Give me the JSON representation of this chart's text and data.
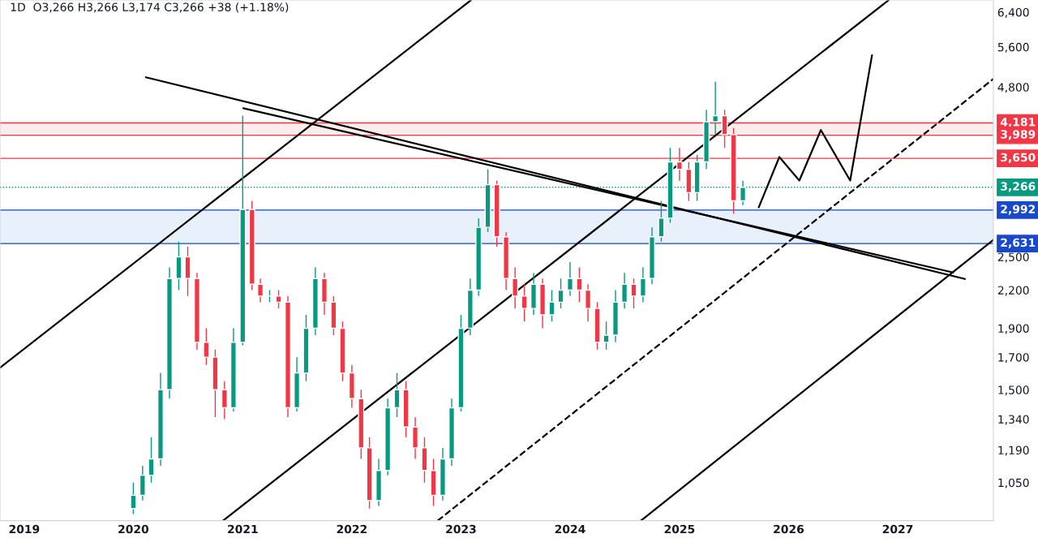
{
  "chart_data": {
    "type": "candlestick",
    "title": "1D  O3,266 H3,266 L3,174 C3,266 +38 (+1.18%)",
    "x": [
      "2020-01",
      "2020-02",
      "2020-03",
      "2020-04",
      "2020-05",
      "2020-06",
      "2020-07",
      "2020-08",
      "2020-09",
      "2020-10",
      "2020-11",
      "2020-12",
      "2021-01",
      "2021-02",
      "2021-03",
      "2021-04",
      "2021-05",
      "2021-06",
      "2021-07",
      "2021-08",
      "2021-09",
      "2021-10",
      "2021-11",
      "2021-12",
      "2022-01",
      "2022-02",
      "2022-03",
      "2022-04",
      "2022-05",
      "2022-06",
      "2022-07",
      "2022-08",
      "2022-09",
      "2022-10",
      "2022-11",
      "2022-12",
      "2023-01",
      "2023-02",
      "2023-03",
      "2023-04",
      "2023-05",
      "2023-06",
      "2023-07",
      "2023-08",
      "2023-09",
      "2023-10",
      "2023-11",
      "2023-12",
      "2024-01",
      "2024-02",
      "2024-03",
      "2024-04",
      "2024-05",
      "2024-06",
      "2024-07",
      "2024-08",
      "2024-09",
      "2024-10",
      "2024-11",
      "2024-12",
      "2025-01",
      "2025-02",
      "2025-03",
      "2025-04",
      "2025-05",
      "2025-06",
      "2025-07",
      "2025-08"
    ],
    "ohlc": [
      [
        950,
        1050,
        930,
        1000
      ],
      [
        1000,
        1120,
        980,
        1080
      ],
      [
        1080,
        1250,
        1050,
        1150
      ],
      [
        1150,
        1600,
        1120,
        1500
      ],
      [
        1500,
        2400,
        1450,
        2300
      ],
      [
        2300,
        2650,
        2200,
        2500
      ],
      [
        2500,
        2600,
        2150,
        2300
      ],
      [
        2300,
        2350,
        1750,
        1800
      ],
      [
        1800,
        1900,
        1650,
        1700
      ],
      [
        1700,
        1750,
        1350,
        1500
      ],
      [
        1500,
        1550,
        1340,
        1400
      ],
      [
        1400,
        1900,
        1380,
        1800
      ],
      [
        1800,
        4300,
        1780,
        3000
      ],
      [
        3000,
        3100,
        2200,
        2250
      ],
      [
        2250,
        2300,
        2100,
        2150
      ],
      [
        2150,
        2200,
        2100,
        2150
      ],
      [
        2150,
        2200,
        2050,
        2100
      ],
      [
        2100,
        2150,
        1350,
        1400
      ],
      [
        1400,
        1700,
        1380,
        1600
      ],
      [
        1600,
        2000,
        1550,
        1900
      ],
      [
        1900,
        2400,
        1850,
        2300
      ],
      [
        2300,
        2350,
        2000,
        2100
      ],
      [
        2100,
        2150,
        1850,
        1900
      ],
      [
        1900,
        1950,
        1550,
        1600
      ],
      [
        1600,
        1650,
        1400,
        1450
      ],
      [
        1450,
        1500,
        1150,
        1200
      ],
      [
        1200,
        1250,
        950,
        980
      ],
      [
        980,
        1150,
        960,
        1100
      ],
      [
        1100,
        1450,
        1080,
        1400
      ],
      [
        1400,
        1600,
        1350,
        1500
      ],
      [
        1500,
        1550,
        1250,
        1300
      ],
      [
        1300,
        1350,
        1150,
        1200
      ],
      [
        1200,
        1250,
        1050,
        1100
      ],
      [
        1100,
        1150,
        960,
        1000
      ],
      [
        1000,
        1200,
        980,
        1150
      ],
      [
        1150,
        1450,
        1120,
        1400
      ],
      [
        1400,
        2000,
        1380,
        1900
      ],
      [
        1900,
        2300,
        1850,
        2200
      ],
      [
        2200,
        2900,
        2150,
        2800
      ],
      [
        2800,
        3500,
        2750,
        3300
      ],
      [
        3300,
        3350,
        2600,
        2700
      ],
      [
        2700,
        2750,
        2200,
        2300
      ],
      [
        2300,
        2400,
        2050,
        2150
      ],
      [
        2150,
        2250,
        1950,
        2050
      ],
      [
        2050,
        2350,
        2000,
        2250
      ],
      [
        2250,
        2300,
        1900,
        2000
      ],
      [
        2000,
        2200,
        1950,
        2100
      ],
      [
        2100,
        2300,
        2050,
        2200
      ],
      [
        2200,
        2450,
        2150,
        2300
      ],
      [
        2300,
        2400,
        2100,
        2200
      ],
      [
        2200,
        2250,
        1950,
        2050
      ],
      [
        2050,
        2100,
        1750,
        1800
      ],
      [
        1800,
        1950,
        1750,
        1850
      ],
      [
        1850,
        2200,
        1800,
        2100
      ],
      [
        2100,
        2350,
        2050,
        2250
      ],
      [
        2250,
        2300,
        2050,
        2150
      ],
      [
        2150,
        2400,
        2100,
        2300
      ],
      [
        2300,
        2800,
        2250,
        2700
      ],
      [
        2700,
        3100,
        2650,
        2900
      ],
      [
        2900,
        3800,
        2850,
        3600
      ],
      [
        3600,
        3800,
        3350,
        3500
      ],
      [
        3500,
        3600,
        3100,
        3200
      ],
      [
        3200,
        3700,
        3100,
        3600
      ],
      [
        3600,
        4400,
        3500,
        4200
      ],
      [
        4200,
        4900,
        4000,
        4300
      ],
      [
        4300,
        4400,
        3800,
        4000
      ],
      [
        4000,
        4100,
        2950,
        3100
      ],
      [
        3100,
        3350,
        3050,
        3266
      ]
    ],
    "series": [
      {
        "type": "line",
        "color": "#000000",
        "line_style": "solid",
        "x": [
          "2018-10-12",
          "2023-02-03"
        ],
        "values": [
          1633,
          6700
        ]
      },
      {
        "type": "line",
        "color": "#000000",
        "line_style": "solid",
        "x": [
          "2020-02-12",
          "2027-08-14"
        ],
        "values": [
          4984,
          2296
        ]
      },
      {
        "type": "line",
        "color": "#000000",
        "line_style": "solid",
        "x": [
          "2021-01-03",
          "2027-07-05"
        ],
        "values": [
          4426,
          2354
        ]
      },
      {
        "type": "line",
        "color": "#000000",
        "line_style": "solid",
        "x": [
          "2020-10-27",
          "2026-12-01"
        ],
        "values": [
          907,
          6700
        ]
      },
      {
        "type": "line",
        "color": "#000000",
        "line_style": "dashed",
        "x": [
          "2022-10-15",
          "2027-11-17"
        ],
        "values": [
          907,
          4953
        ]
      },
      {
        "type": "line",
        "color": "#000000",
        "line_style": "solid",
        "x": [
          "2024-08-25",
          "2027-11-17"
        ],
        "values": [
          907,
          2668
        ]
      },
      {
        "type": "line",
        "color": "#000000",
        "line_style": "solid",
        "x": [
          "2025-09-23",
          "2025-12-01",
          "2026-02-06",
          "2026-04-19",
          "2026-07-26",
          "2026-10-07"
        ],
        "values": [
          3023,
          3669,
          3352,
          4069,
          3352,
          5423
        ]
      }
    ],
    "ref_lines": [
      {
        "axis": "y",
        "value": 4181,
        "label": "4,181",
        "color": "#f23645",
        "line_style": "solid"
      },
      {
        "axis": "y",
        "value": 3989,
        "label": "3,989",
        "color": "#f23645",
        "line_style": "solid"
      },
      {
        "axis": "y",
        "value": 3650,
        "label": "3,650",
        "color": "#f23645",
        "line_style": "solid"
      },
      {
        "axis": "y",
        "value": 3266,
        "label": "3,266",
        "color": "#089981",
        "line_style": "dotted"
      },
      {
        "axis": "y",
        "value": 2992,
        "label": "2,992",
        "color": "#1848cc",
        "line_style": "solid"
      },
      {
        "axis": "y",
        "value": 2631,
        "label": "2,631",
        "color": "#1848cc",
        "line_style": "solid"
      }
    ],
    "bands": [
      {
        "axis": "y",
        "from": 3989,
        "to": 4181,
        "color": "#fdecec"
      },
      {
        "axis": "y",
        "from": 2631,
        "to": 2992,
        "color": "#e8f0fb"
      }
    ],
    "log": true,
    "grid": false,
    "xlim": [
      "2018-10-12",
      "2027-11-17"
    ],
    "xticks": [
      "2019",
      "2020",
      "2021",
      "2022",
      "2023",
      "2024",
      "2025",
      "2026",
      "2027"
    ],
    "ylim": [
      907,
      6707
    ],
    "yticks": [
      {
        "value": 1050,
        "label": "1,050"
      },
      {
        "value": 1190,
        "label": "1,190"
      },
      {
        "value": 1340,
        "label": "1,340"
      },
      {
        "value": 1500,
        "label": "1,500"
      },
      {
        "value": 1700,
        "label": "1,700"
      },
      {
        "value": 1900,
        "label": "1,900"
      },
      {
        "value": 2200,
        "label": "2,200"
      },
      {
        "value": 2500,
        "label": "2,500"
      },
      {
        "value": 4800,
        "label": "4,800"
      },
      {
        "value": 5600,
        "label": "5,600"
      },
      {
        "value": 6400,
        "label": "6,400"
      }
    ]
  }
}
